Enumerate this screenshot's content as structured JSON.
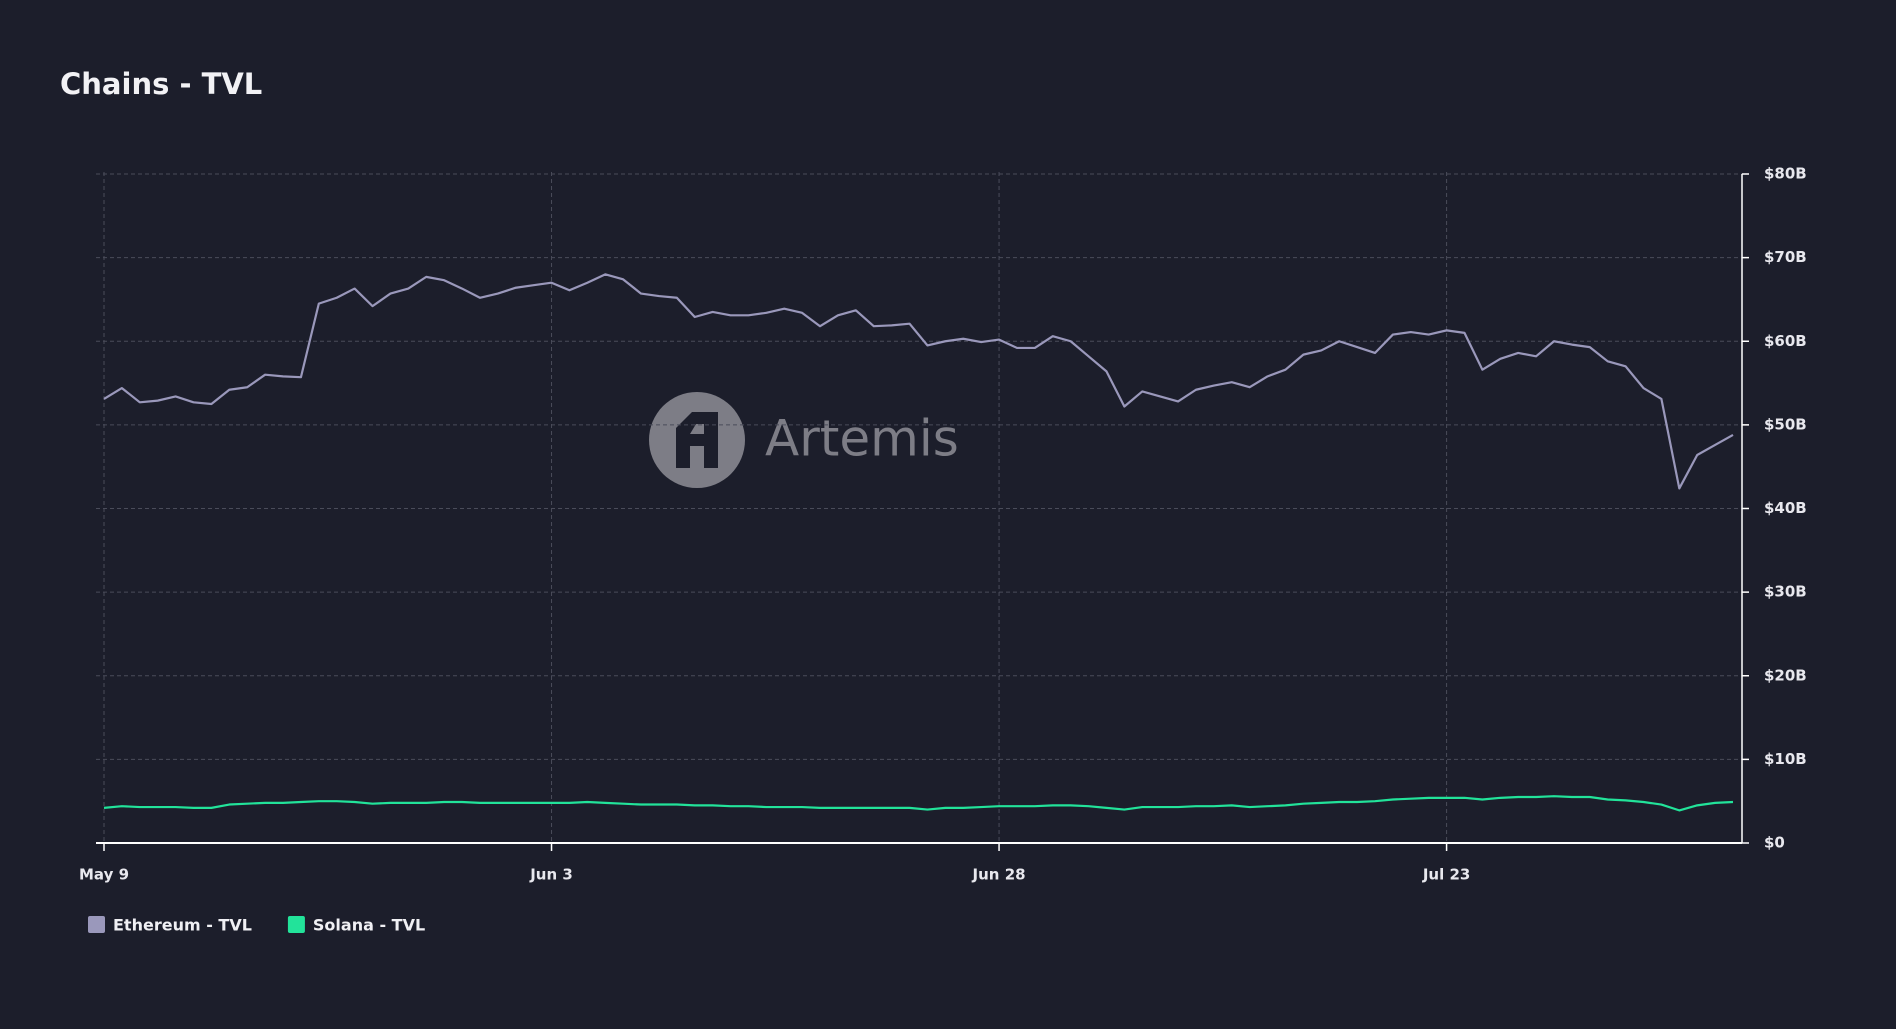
{
  "chart_data": {
    "type": "line",
    "title": "Chains - TVL",
    "watermark": "Artemis",
    "categories": [
      "May 9",
      null,
      null,
      null,
      null,
      null,
      null,
      null,
      null,
      null,
      null,
      null,
      null,
      null,
      null,
      null,
      null,
      null,
      null,
      null,
      null,
      null,
      null,
      null,
      null,
      "Jun 3",
      null,
      null,
      null,
      null,
      null,
      null,
      null,
      null,
      null,
      null,
      null,
      null,
      null,
      null,
      null,
      null,
      null,
      null,
      null,
      null,
      null,
      null,
      null,
      null,
      "Jun 28",
      null,
      null,
      null,
      null,
      null,
      null,
      null,
      null,
      null,
      null,
      null,
      null,
      null,
      null,
      null,
      null,
      null,
      null,
      null,
      null,
      null,
      null,
      null,
      null,
      "Jul 23",
      null,
      null,
      null,
      null,
      null,
      null,
      null,
      null,
      null,
      null,
      null,
      null,
      null,
      null,
      null,
      null
    ],
    "series": [
      {
        "name": "Ethereum - TVL",
        "color": "#9a98bb",
        "values": [
          53.1,
          54.4,
          52.7,
          52.9,
          53.4,
          52.7,
          52.5,
          54.2,
          54.5,
          56.0,
          55.8,
          55.7,
          64.5,
          65.2,
          66.3,
          64.2,
          65.7,
          66.3,
          67.7,
          67.3,
          66.3,
          65.2,
          65.7,
          66.4,
          66.7,
          67.0,
          66.1,
          67.0,
          68.0,
          67.4,
          65.7,
          65.4,
          65.2,
          62.9,
          63.5,
          63.1,
          63.1,
          63.4,
          63.9,
          63.4,
          61.8,
          63.1,
          63.7,
          61.8,
          61.9,
          62.1,
          59.5,
          60.0,
          60.3,
          59.9,
          60.2,
          59.2,
          59.2,
          60.6,
          60.0,
          58.2,
          56.4,
          52.2,
          54.0,
          53.4,
          52.8,
          54.2,
          54.7,
          55.1,
          54.5,
          55.8,
          56.6,
          58.4,
          58.9,
          60.0,
          59.3,
          58.6,
          60.8,
          61.1,
          60.8,
          61.3,
          61.0,
          56.6,
          57.9,
          58.6,
          58.2,
          60.0,
          59.6,
          59.3,
          57.6,
          57.0,
          54.4,
          53.1,
          42.4,
          46.4,
          47.6,
          48.8
        ]
      },
      {
        "name": "Solana - TVL",
        "color": "#22e39a",
        "values": [
          4.2,
          4.4,
          4.3,
          4.3,
          4.3,
          4.2,
          4.2,
          4.6,
          4.7,
          4.8,
          4.8,
          4.9,
          5.0,
          5.0,
          4.9,
          4.7,
          4.8,
          4.8,
          4.8,
          4.9,
          4.9,
          4.8,
          4.8,
          4.8,
          4.8,
          4.8,
          4.8,
          4.9,
          4.8,
          4.7,
          4.6,
          4.6,
          4.6,
          4.5,
          4.5,
          4.4,
          4.4,
          4.3,
          4.3,
          4.3,
          4.2,
          4.2,
          4.2,
          4.2,
          4.2,
          4.2,
          4.0,
          4.2,
          4.2,
          4.3,
          4.4,
          4.4,
          4.4,
          4.5,
          4.5,
          4.4,
          4.2,
          4.0,
          4.3,
          4.3,
          4.3,
          4.4,
          4.4,
          4.5,
          4.3,
          4.4,
          4.5,
          4.7,
          4.8,
          4.9,
          4.9,
          5.0,
          5.2,
          5.3,
          5.4,
          5.4,
          5.4,
          5.2,
          5.4,
          5.5,
          5.5,
          5.6,
          5.5,
          5.5,
          5.2,
          5.1,
          4.9,
          4.6,
          3.9,
          4.5,
          4.8,
          4.9
        ]
      }
    ],
    "ylim": [
      0,
      80
    ],
    "yticks": [
      {
        "value": 0,
        "label": "$0"
      },
      {
        "value": 10,
        "label": "$10B"
      },
      {
        "value": 20,
        "label": "$20B"
      },
      {
        "value": 30,
        "label": "$30B"
      },
      {
        "value": 40,
        "label": "$40B"
      },
      {
        "value": 50,
        "label": "$50B"
      },
      {
        "value": 60,
        "label": "$60B"
      },
      {
        "value": 70,
        "label": "$70B"
      },
      {
        "value": 80,
        "label": "$80B"
      }
    ],
    "y_axis_side": "right",
    "grid": true,
    "legend": "bottom-left"
  }
}
